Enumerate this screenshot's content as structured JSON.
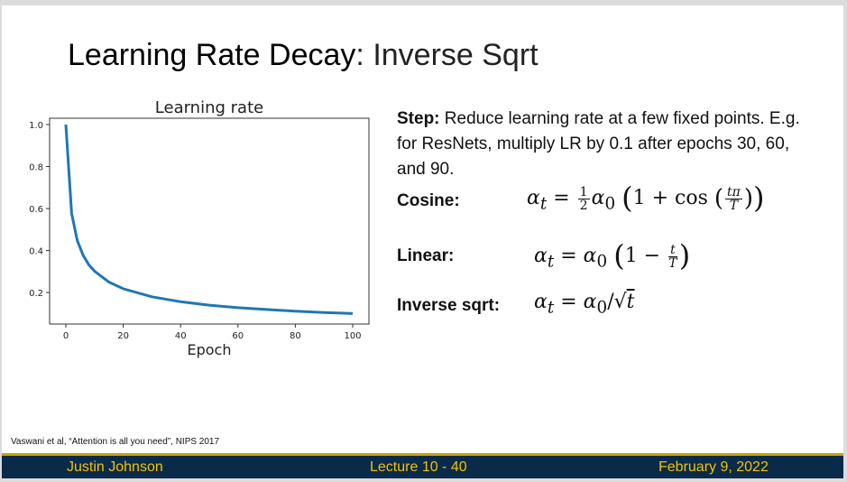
{
  "slide": {
    "title_main": "Learning Rate Decay",
    "title_rest": ": Inverse Sqrt",
    "step_label": "Step:",
    "step_text": " Reduce learning rate at a few fixed points. E.g. for ResNets, multiply LR by 0.1 after epochs 30, 60, and 90.",
    "cosine_label": "Cosine:",
    "linear_label": "Linear:",
    "invsqrt_label": "Inverse sqrt:",
    "citation": "Vaswani et al, “Attention is all you need”, NIPS 2017"
  },
  "footer": {
    "author": "Justin Johnson",
    "lecture": "Lecture 10 - 40",
    "date": "February 9, 2022"
  },
  "colors": {
    "footer_bg": "#0a2a4a",
    "footer_text": "#f0c400",
    "line": "#1f77b4"
  },
  "chart_data": {
    "type": "line",
    "title": "Learning rate",
    "xlabel": "Epoch",
    "ylabel": "",
    "xlim": [
      0,
      100
    ],
    "ylim": [
      0.05,
      1.03
    ],
    "xticks": [
      0,
      20,
      40,
      60,
      80,
      100
    ],
    "yticks": [
      0.2,
      0.4,
      0.6,
      0.8,
      1.0
    ],
    "ytick_labels": [
      "0.2",
      "0.4",
      "0.6",
      "0.8",
      "1.0"
    ],
    "grid": false,
    "series": [
      {
        "x": [
          0,
          2,
          4,
          6,
          8,
          10,
          15,
          20,
          30,
          40,
          50,
          60,
          70,
          80,
          90,
          100
        ],
        "values": [
          1.0,
          0.577,
          0.447,
          0.378,
          0.333,
          0.302,
          0.25,
          0.218,
          0.18,
          0.156,
          0.14,
          0.128,
          0.119,
          0.111,
          0.105,
          0.1
        ]
      }
    ]
  }
}
